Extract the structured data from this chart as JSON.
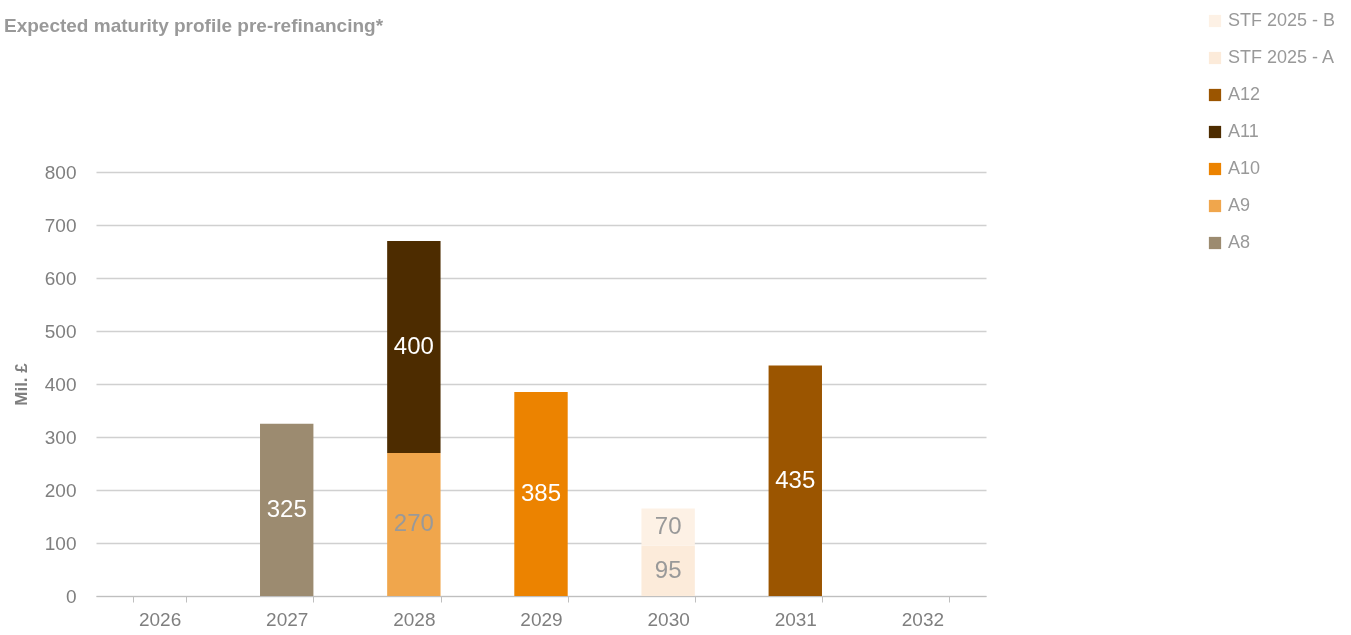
{
  "chart_data": {
    "type": "bar",
    "title": "Expected maturity profile pre-refinancing*",
    "ylabel": "Mil. £",
    "categories": [
      "2026",
      "2027",
      "2028",
      "2029",
      "2030",
      "2031",
      "2032"
    ],
    "stacked": true,
    "data_labels": true,
    "grid": "y",
    "legend": "top right",
    "ylim": [
      0,
      800
    ],
    "yticks": [
      0,
      100,
      200,
      300,
      400,
      500,
      600,
      700,
      800
    ],
    "series": [
      {
        "name": "A8",
        "color": "#9c8b70",
        "values": [
          null,
          325,
          null,
          null,
          null,
          null,
          null
        ]
      },
      {
        "name": "A9",
        "color": "#f0a64c",
        "values": [
          null,
          null,
          270,
          null,
          null,
          null,
          null
        ]
      },
      {
        "name": "A10",
        "color": "#ec8300",
        "values": [
          null,
          null,
          null,
          385,
          null,
          null,
          null
        ]
      },
      {
        "name": "A11",
        "color": "#4d2c00",
        "values": [
          null,
          null,
          400,
          null,
          null,
          null,
          null
        ]
      },
      {
        "name": "A12",
        "color": "#9b5500",
        "values": [
          null,
          null,
          null,
          null,
          null,
          435,
          null
        ]
      },
      {
        "name": "STF 2025 - A",
        "color": "#fcebda",
        "values": [
          null,
          null,
          null,
          null,
          95,
          null,
          null
        ]
      },
      {
        "name": "STF 2025 - B",
        "color": "#fdf1e5",
        "values": [
          null,
          null,
          null,
          null,
          70,
          null,
          null
        ]
      }
    ]
  }
}
